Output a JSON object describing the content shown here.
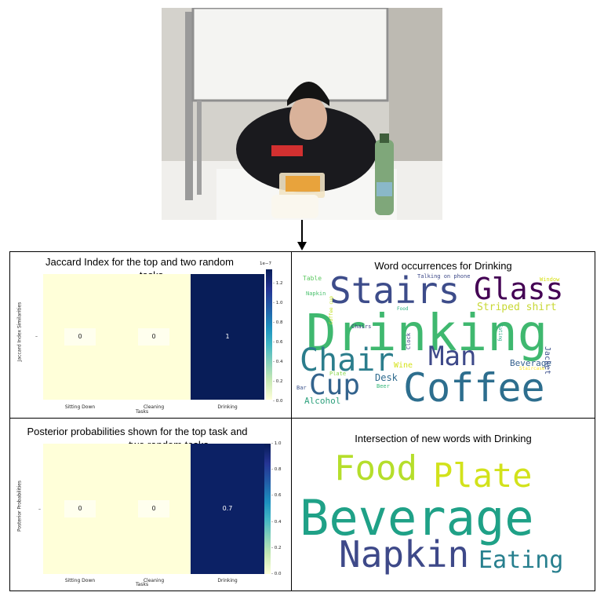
{
  "top_heatmap": {
    "title_line1": "Jaccard Index for the top and two random",
    "title_line2": "tasks",
    "ylabel": "Jaccard Index Similarities",
    "xlabel": "Tasks",
    "colorbar_exponent": "1e−7",
    "colorbar_ticks": [
      "1.2",
      "1.0",
      "0.8",
      "0.6",
      "0.4",
      "0.2",
      "0.0"
    ]
  },
  "bottom_heatmap": {
    "title_line1": "Posterior probabilities shown for the top task and",
    "title_line2": "two random tasks",
    "ylabel": "Posterior Probabilities",
    "xlabel": "Tasks",
    "colorbar_ticks": [
      "1.0",
      "0.8",
      "0.6",
      "0.4",
      "0.2",
      "0.0"
    ]
  },
  "chart_data": [
    {
      "type": "heatmap",
      "title": "Jaccard Index for the top and two random tasks",
      "categories": [
        "Sitting Down",
        "Cleaning",
        "Drinking"
      ],
      "values": [
        0,
        0,
        1
      ],
      "cell_labels": [
        "0",
        "0",
        "1"
      ],
      "colors": [
        "#ffffd9",
        "#ffffd9",
        "#081d58"
      ],
      "xlabel": "Tasks",
      "ylabel": "Jaccard Index Similarities",
      "colorbar_range": [
        0.0,
        1.3
      ]
    },
    {
      "type": "heatmap",
      "title": "Posterior probabilities shown for the top task and two random tasks",
      "categories": [
        "Sitting Down",
        "Cleaning",
        "Drinking"
      ],
      "values": [
        0,
        0,
        0.7
      ],
      "cell_labels": [
        "0",
        "0",
        "0.7"
      ],
      "colors": [
        "#ffffd9",
        "#ffffd9",
        "#0c2165"
      ],
      "xlabel": "Tasks",
      "ylabel": "Posterior Probabilities",
      "colorbar_range": [
        0.0,
        1.0
      ]
    }
  ],
  "wordcloud_top": {
    "title": "Word occurrences for Drinking",
    "words": [
      {
        "text": "Drinking",
        "color": "#3fb86f"
      },
      {
        "text": "Stairs",
        "color": "#3d4c8a"
      },
      {
        "text": "Coffee",
        "color": "#2d6e8e"
      },
      {
        "text": "Glass",
        "color": "#440154"
      },
      {
        "text": "Chair",
        "color": "#2b7d8c"
      },
      {
        "text": "Man",
        "color": "#3e4989"
      },
      {
        "text": "Cup",
        "color": "#33638d"
      },
      {
        "text": "Striped shirt",
        "color": "#c8d835"
      },
      {
        "text": "Alcohol",
        "color": "#2ea17d"
      },
      {
        "text": "Desk",
        "color": "#2f6b8e"
      },
      {
        "text": "Beverage",
        "color": "#35608d"
      },
      {
        "text": "Wine",
        "color": "#d5e21a"
      },
      {
        "text": "Jacket",
        "color": "#3c508b"
      },
      {
        "text": "Table",
        "color": "#5ec962"
      },
      {
        "text": "Talking on phone",
        "color": "#3e4a89"
      },
      {
        "text": "Window",
        "color": "#d8e219"
      },
      {
        "text": "Napkin",
        "color": "#4ac16d"
      },
      {
        "text": "Coffee cup",
        "color": "#c2df23"
      },
      {
        "text": "Chairs",
        "color": "#404387"
      },
      {
        "text": "Food",
        "color": "#2ab07f"
      },
      {
        "text": "Eating",
        "color": "#26a784"
      },
      {
        "text": "Clock",
        "color": "#414487"
      },
      {
        "text": "Plate",
        "color": "#87d549"
      },
      {
        "text": "Staircase",
        "color": "#fde725"
      },
      {
        "text": "Bar",
        "color": "#3b528b"
      },
      {
        "text": "Beer",
        "color": "#35b779"
      }
    ]
  },
  "wordcloud_bottom": {
    "title": "Intersection of new words with Drinking",
    "words": [
      {
        "text": "Beverage",
        "color": "#1fa187"
      },
      {
        "text": "Food",
        "color": "#b5de2b"
      },
      {
        "text": "Plate",
        "color": "#d2e21b"
      },
      {
        "text": "Napkin",
        "color": "#3e4989"
      },
      {
        "text": "Eating",
        "color": "#277f8e"
      }
    ]
  }
}
